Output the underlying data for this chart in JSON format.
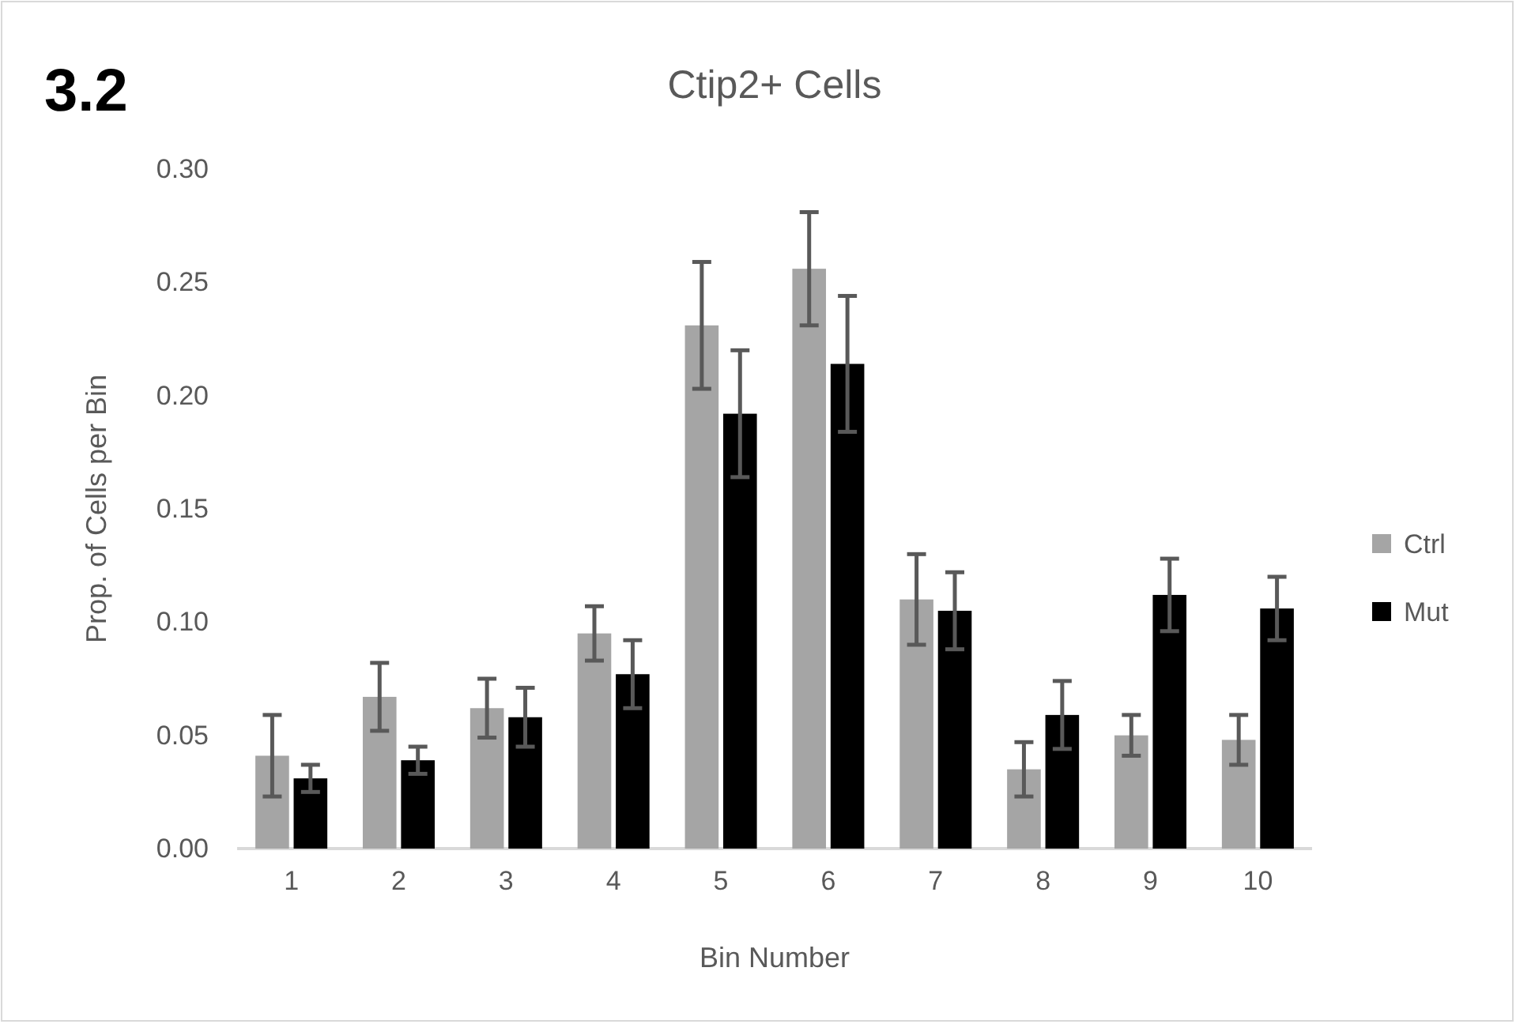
{
  "chart_data": {
    "type": "bar",
    "title": "Ctip2+ Cells",
    "xlabel": "Bin Number",
    "ylabel": "Prop. of Cells per Bin",
    "annotations": [
      "3.2"
    ],
    "categories": [
      "1",
      "2",
      "3",
      "4",
      "5",
      "6",
      "7",
      "8",
      "9",
      "10"
    ],
    "series": [
      {
        "name": "Ctrl",
        "color": "#a5a5a5",
        "values": [
          0.041,
          0.067,
          0.062,
          0.095,
          0.231,
          0.256,
          0.11,
          0.035,
          0.05,
          0.048
        ],
        "errors": [
          0.018,
          0.015,
          0.013,
          0.012,
          0.028,
          0.025,
          0.02,
          0.012,
          0.009,
          0.011
        ]
      },
      {
        "name": "Mut",
        "color": "#000000",
        "values": [
          0.031,
          0.039,
          0.058,
          0.077,
          0.192,
          0.214,
          0.105,
          0.059,
          0.112,
          0.106
        ],
        "errors": [
          0.006,
          0.006,
          0.013,
          0.015,
          0.028,
          0.03,
          0.017,
          0.015,
          0.016,
          0.014
        ]
      }
    ],
    "ylim": [
      0,
      0.3
    ],
    "yticks": [
      {
        "value": 0,
        "label": "0.00"
      },
      {
        "value": 0.05,
        "label": "0.05"
      },
      {
        "value": 0.1,
        "label": "0.10"
      },
      {
        "value": 0.15,
        "label": "0.15"
      },
      {
        "value": 0.2,
        "label": "0.20"
      },
      {
        "value": 0.25,
        "label": "0.25"
      },
      {
        "value": 0.3,
        "label": "0.30"
      }
    ],
    "grid": false,
    "legend": "right"
  }
}
